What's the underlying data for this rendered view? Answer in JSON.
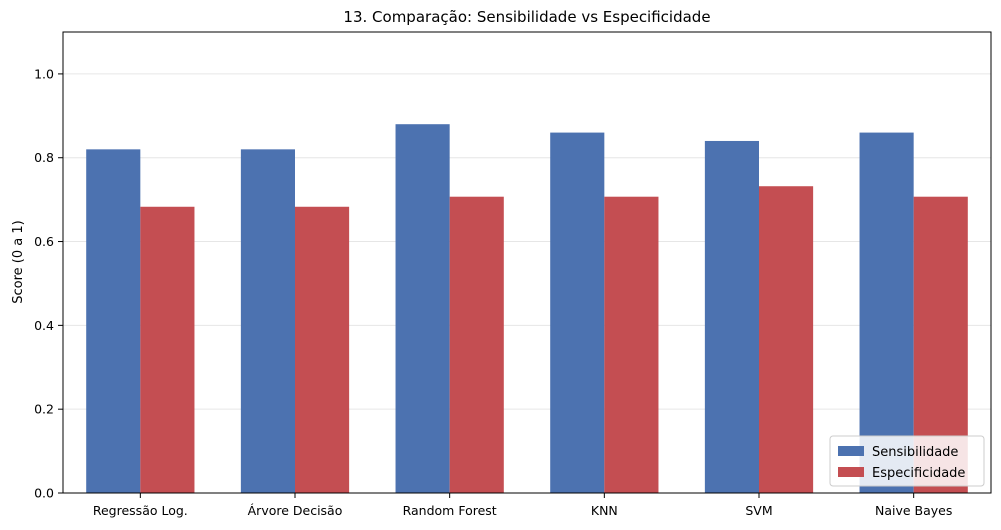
{
  "chart_data": {
    "type": "bar",
    "title": "13. Comparação: Sensibilidade vs Especificidade",
    "xlabel": "",
    "ylabel": "Score (0 a 1)",
    "ylim": [
      0,
      1.1
    ],
    "yticks": [
      "0.0",
      "0.2",
      "0.4",
      "0.6",
      "0.8",
      "1.0"
    ],
    "grid": "horizontal",
    "legend_position": "bottom-right",
    "categories": [
      "Regressão Log.",
      "Árvore Decisão",
      "Random Forest",
      "KNN",
      "SVM",
      "Naive Bayes"
    ],
    "series": [
      {
        "name": "Sensibilidade",
        "color": "#4c72b0",
        "values": [
          0.82,
          0.82,
          0.88,
          0.86,
          0.84,
          0.86
        ]
      },
      {
        "name": "Especificidade",
        "color": "#c44e52",
        "values": [
          0.683,
          0.683,
          0.707,
          0.707,
          0.732,
          0.707
        ]
      }
    ]
  }
}
